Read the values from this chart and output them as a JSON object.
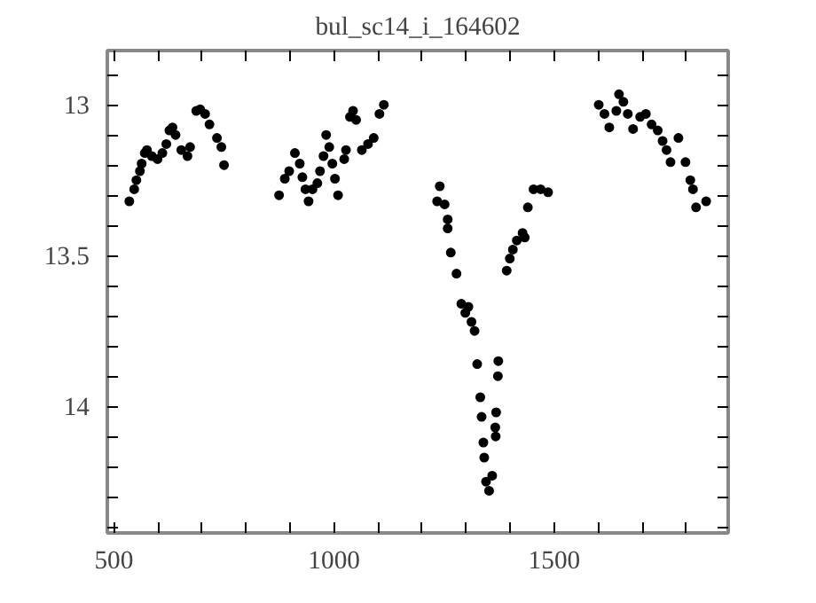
{
  "chart_data": {
    "type": "scatter",
    "title": "bul_sc14_i_164602",
    "marker": "circle",
    "grid": false,
    "xlim": [
      485,
      1895
    ],
    "ylim": [
      14.42,
      12.82
    ],
    "xticks": [
      {
        "value": 500,
        "label": "500"
      },
      {
        "value": 600,
        "label": null
      },
      {
        "value": 700,
        "label": null
      },
      {
        "value": 800,
        "label": null
      },
      {
        "value": 900,
        "label": null
      },
      {
        "value": 1000,
        "label": "1000"
      },
      {
        "value": 1100,
        "label": null
      },
      {
        "value": 1200,
        "label": null
      },
      {
        "value": 1300,
        "label": null
      },
      {
        "value": 1400,
        "label": null
      },
      {
        "value": 1500,
        "label": "1500"
      },
      {
        "value": 1600,
        "label": null
      },
      {
        "value": 1700,
        "label": null
      },
      {
        "value": 1800,
        "label": null
      }
    ],
    "yticks": [
      {
        "value": 12.9,
        "label": null
      },
      13,
      {
        "value": 13.1,
        "label": null
      },
      {
        "value": 13.2,
        "label": null
      },
      {
        "value": 13.3,
        "label": null
      },
      {
        "value": 13.4,
        "label": null
      },
      13.5,
      {
        "value": 13.6,
        "label": null
      },
      {
        "value": 13.7,
        "label": null
      },
      {
        "value": 13.8,
        "label": null
      },
      {
        "value": 13.9,
        "label": null
      },
      14,
      {
        "value": 14.1,
        "label": null
      },
      {
        "value": 14.2,
        "label": null
      },
      {
        "value": 14.3,
        "label": null
      },
      {
        "value": 14.4,
        "label": null
      }
    ],
    "series": [
      {
        "color": "#000000",
        "x": [
          535,
          546,
          551,
          559,
          563,
          570,
          575,
          586,
          599,
          610,
          619,
          626,
          633,
          640,
          653,
          667,
          673,
          687,
          696,
          707,
          717,
          734,
          744,
          750,
          875,
          888,
          898,
          911,
          922,
          928,
          935,
          942,
          951,
          962,
          968,
          976,
          982,
          989,
          996,
          1002,
          1009,
          1023,
          1027,
          1036,
          1043,
          1050,
          1063,
          1077,
          1090,
          1103,
          1113,
          1234,
          1240,
          1251,
          1258,
          1258,
          1265,
          1278,
          1289,
          1298,
          1305,
          1312,
          1319,
          1325,
          1332,
          1335,
          1339,
          1341,
          1345,
          1352,
          1359,
          1366,
          1367,
          1368,
          1372,
          1373,
          1392,
          1399,
          1406,
          1415,
          1428,
          1433,
          1440,
          1453,
          1469,
          1486,
          1601,
          1614,
          1625,
          1641,
          1647,
          1657,
          1667,
          1679,
          1695,
          1708,
          1721,
          1735,
          1746,
          1755,
          1764,
          1782,
          1798,
          1809,
          1815,
          1822,
          1845
        ],
        "values": [
          13.32,
          13.28,
          13.25,
          13.22,
          13.195,
          13.16,
          13.15,
          13.17,
          13.18,
          13.16,
          13.13,
          13.085,
          13.075,
          13.1,
          13.15,
          13.17,
          13.14,
          13.02,
          13.015,
          13.03,
          13.065,
          13.11,
          13.14,
          13.2,
          13.3,
          13.245,
          13.22,
          13.16,
          13.195,
          13.24,
          13.28,
          13.32,
          13.28,
          13.26,
          13.22,
          13.17,
          13.1,
          13.14,
          13.195,
          13.245,
          13.3,
          13.18,
          13.15,
          13.04,
          13.02,
          13.05,
          13.15,
          13.13,
          13.11,
          13.03,
          13.0,
          13.32,
          13.27,
          13.33,
          13.38,
          13.41,
          13.49,
          13.56,
          13.66,
          13.69,
          13.67,
          13.72,
          13.75,
          13.86,
          13.97,
          14.035,
          14.12,
          14.17,
          14.25,
          14.28,
          14.23,
          14.07,
          14.1,
          14.02,
          13.9,
          13.85,
          13.55,
          13.51,
          13.48,
          13.45,
          13.425,
          13.44,
          13.34,
          13.28,
          13.28,
          13.29,
          13.0,
          13.03,
          13.075,
          13.02,
          12.965,
          12.99,
          13.03,
          13.08,
          13.04,
          13.03,
          13.065,
          13.085,
          13.12,
          13.15,
          13.19,
          13.11,
          13.19,
          13.25,
          13.28,
          13.34,
          13.32
        ]
      }
    ]
  }
}
